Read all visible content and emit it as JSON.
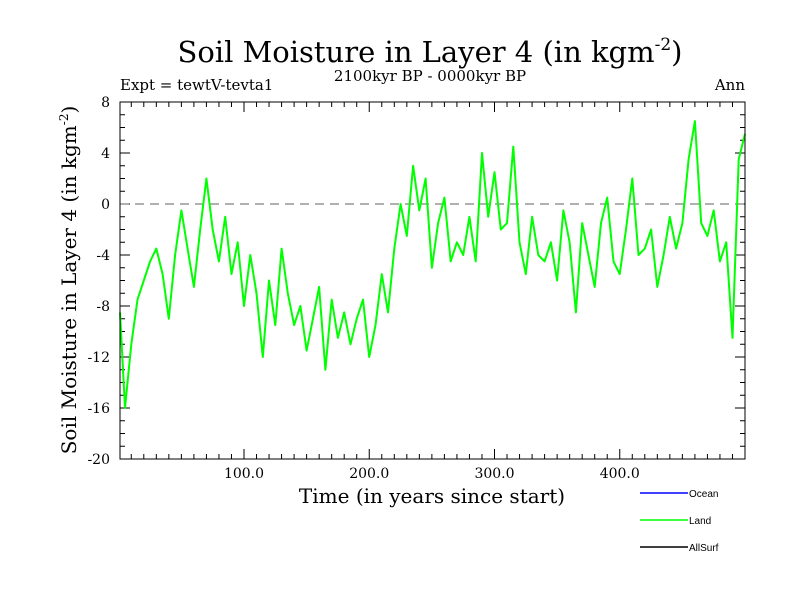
{
  "chart_data": {
    "type": "line",
    "title": "Soil Moisture in Layer 4 (in kgm",
    "title_sup": "-2",
    "title_end": ")",
    "subtitle_left": "Expt = tewtV-tevta1",
    "subtitle_center": "2100kyr BP - 0000kyr BP",
    "subtitle_right": "Ann",
    "xlabel": "Time (in years since start)",
    "ylabel": "Soil Moisture in Layer 4 (in kgm",
    "ylabel_sup": "-2",
    "ylabel_end": ")",
    "xlim": [
      1,
      500
    ],
    "ylim": [
      -20,
      8
    ],
    "x_ticks": [
      100,
      200,
      300,
      400
    ],
    "x_tick_labels": [
      "100.0",
      "200.0",
      "300.0",
      "400.0"
    ],
    "y_ticks": [
      8,
      4,
      0,
      -4,
      -8,
      -12,
      -16,
      -20
    ],
    "y_tick_labels": [
      "8",
      "4",
      "0",
      "-4",
      "-8",
      "-12",
      "-16",
      "-20"
    ],
    "reference_line": {
      "y": 0,
      "style": "dashed",
      "color": "#808080"
    },
    "legend": [
      {
        "name": "Ocean",
        "color": "#0000ff"
      },
      {
        "name": "Land",
        "color": "#00ff00"
      },
      {
        "name": "AllSurf",
        "color": "#000000"
      }
    ],
    "series": [
      {
        "name": "Land",
        "color": "#00ff00",
        "x": [
          1,
          5,
          10,
          15,
          20,
          25,
          30,
          35,
          40,
          45,
          50,
          55,
          60,
          65,
          70,
          75,
          80,
          85,
          90,
          95,
          100,
          105,
          110,
          115,
          120,
          125,
          130,
          135,
          140,
          145,
          150,
          155,
          160,
          165,
          170,
          175,
          180,
          185,
          190,
          195,
          200,
          205,
          210,
          215,
          220,
          225,
          230,
          235,
          240,
          245,
          250,
          255,
          260,
          265,
          270,
          275,
          280,
          285,
          290,
          295,
          300,
          305,
          310,
          315,
          320,
          325,
          330,
          335,
          340,
          345,
          350,
          355,
          360,
          365,
          370,
          375,
          380,
          385,
          390,
          395,
          400,
          405,
          410,
          415,
          420,
          425,
          430,
          435,
          440,
          445,
          450,
          455,
          460,
          465,
          470,
          475,
          480,
          485,
          490,
          495,
          500
        ],
        "values": [
          -8.5,
          -16,
          -11,
          -7.5,
          -6,
          -4.5,
          -3.5,
          -5.5,
          -9,
          -4,
          -0.5,
          -3.5,
          -6.5,
          -2,
          2,
          -2,
          -4.5,
          -1,
          -5.5,
          -3,
          -8,
          -4,
          -7,
          -12,
          -6,
          -9.5,
          -3.5,
          -7,
          -9.5,
          -8,
          -11.5,
          -9,
          -6.5,
          -13,
          -7.5,
          -10.5,
          -8.5,
          -11,
          -9,
          -7.5,
          -12,
          -9.5,
          -5.5,
          -8.5,
          -3.5,
          0,
          -2.5,
          3,
          -0.5,
          2,
          -5,
          -1.5,
          0.5,
          -4.5,
          -3,
          -4,
          -1,
          -4.5,
          4,
          -1,
          2.5,
          -2,
          -1.5,
          4.5,
          -3,
          -5.5,
          -1,
          -4,
          -4.5,
          -3,
          -6,
          -0.5,
          -3,
          -8.5,
          -1.5,
          -4,
          -6.5,
          -1.5,
          0.5,
          -4.5,
          -5.5,
          -2,
          2,
          -4,
          -3.5,
          -2,
          -6.5,
          -4,
          -1,
          -3.5,
          -1.5,
          3.5,
          6.5,
          -1.5,
          -2.5,
          -0.5,
          -4.5,
          -3,
          -10.5,
          3.5,
          5.5
        ]
      }
    ]
  }
}
